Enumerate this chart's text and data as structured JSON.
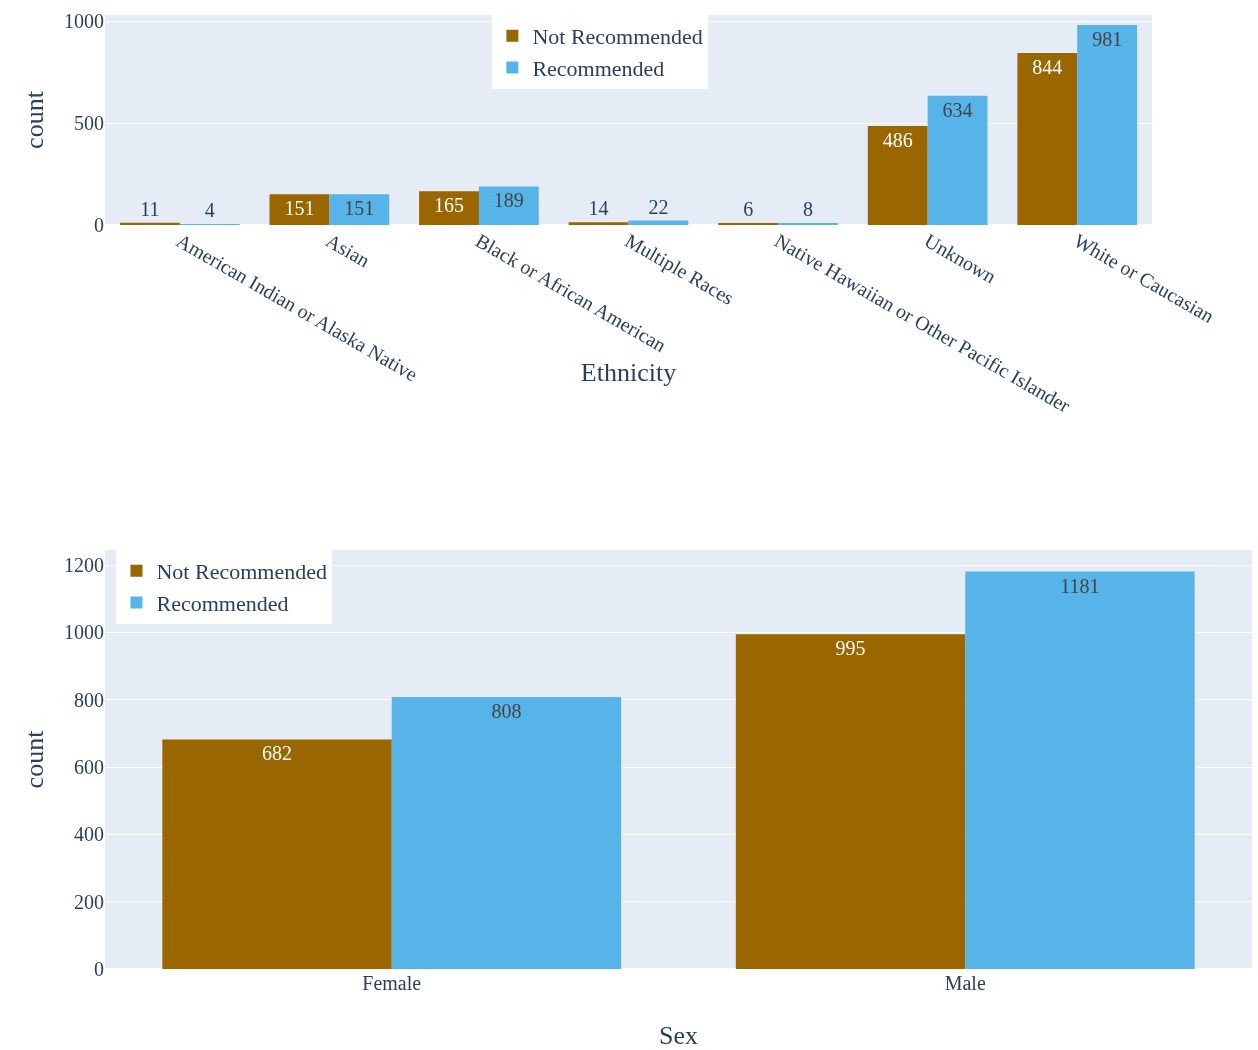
{
  "chart_data": [
    {
      "type": "bar",
      "xlabel": "Ethnicity",
      "ylabel": "count",
      "categories": [
        "American Indian or Alaska Native",
        "Asian",
        "Black or African American",
        "Multiple Races",
        "Native Hawaiian or Other Pacific Islander",
        "Unknown",
        "White or Caucasian"
      ],
      "series": [
        {
          "name": "Not Recommended",
          "color": "#996600",
          "values": [
            11,
            151,
            165,
            14,
            6,
            486,
            844
          ]
        },
        {
          "name": "Recommended",
          "color": "#56b4e9",
          "values": [
            4,
            151,
            189,
            22,
            8,
            634,
            981
          ]
        }
      ],
      "ylim": [
        0,
        1030
      ],
      "yticks": [
        0,
        500,
        1000
      ],
      "grid": "y",
      "legend": "top",
      "data_labels": true
    },
    {
      "type": "bar",
      "xlabel": "Sex",
      "ylabel": "count",
      "categories": [
        "Female",
        "Male"
      ],
      "series": [
        {
          "name": "Not Recommended",
          "color": "#996600",
          "values": [
            682,
            995
          ]
        },
        {
          "name": "Recommended",
          "color": "#56b4e9",
          "values": [
            808,
            1181
          ]
        }
      ],
      "ylim": [
        0,
        1245
      ],
      "yticks": [
        0,
        200,
        400,
        600,
        800,
        1000,
        1200
      ],
      "grid": "y",
      "legend": "top left",
      "data_labels": true
    }
  ]
}
